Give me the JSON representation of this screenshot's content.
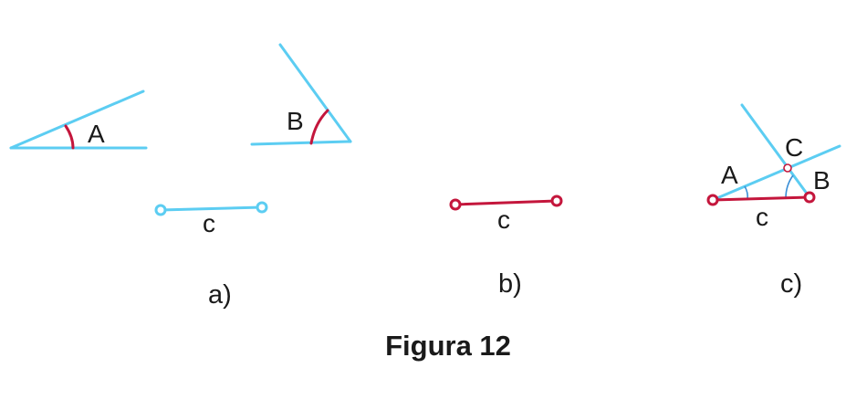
{
  "labels": {
    "angle_a": "A",
    "angle_b": "B",
    "side_a": "c",
    "side_b": "c",
    "side_c": "c",
    "vertex_a": "A",
    "vertex_b": "B",
    "vertex_c": "C",
    "part_a": "a)",
    "part_b": "b)",
    "part_c": "c)"
  },
  "caption": "Figura 12",
  "colors": {
    "line": "#5ccdf2",
    "highlight": "#c4163c",
    "angle_arc": "#3a8fd6",
    "text": "#1a1a1a"
  }
}
